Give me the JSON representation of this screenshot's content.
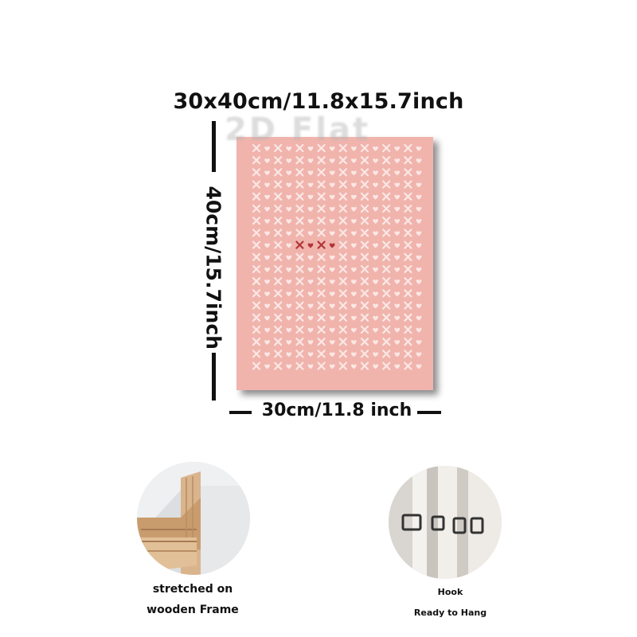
{
  "dimensions": {
    "top_label": "30x40cm/11.8x15.7inch",
    "side_label": "40cm/15.7inch",
    "bottom_label": "30cm/11.8 inch"
  },
  "watermark": "2D Flat",
  "poster": {
    "background_color": "#f0b4ad",
    "pattern_color": "#fbe7e4",
    "accent_color": "#b2343a",
    "center_text": "x♥x♥"
  },
  "features": [
    {
      "icon": "wooden-frame-corner",
      "line1": "stretched on",
      "line2": "wooden Frame"
    },
    {
      "icon": "hanging-hook",
      "line1": "Hook",
      "line2": "Ready to Hang"
    }
  ]
}
